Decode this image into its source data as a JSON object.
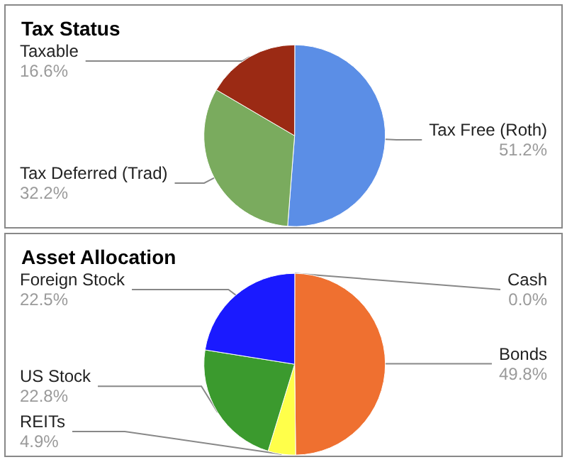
{
  "chart_data": [
    {
      "type": "pie",
      "title": "Tax Status",
      "categories": [
        "Tax Free (Roth)",
        "Tax Deferred (Trad)",
        "Taxable"
      ],
      "values": [
        51.2,
        32.2,
        16.6
      ],
      "value_labels": [
        "51.2%",
        "32.2%",
        "16.6%"
      ],
      "colors": [
        "#5b8ee6",
        "#7aab5e",
        "#9b2a14"
      ],
      "legend": false
    },
    {
      "type": "pie",
      "title": "Asset Allocation",
      "categories": [
        "Cash",
        "Bonds",
        "REITs",
        "US Stock",
        "Foreign Stock"
      ],
      "values": [
        0.0,
        49.8,
        4.9,
        22.8,
        22.5
      ],
      "value_labels": [
        "0.0%",
        "49.8%",
        "4.9%",
        "22.8%",
        "22.5%"
      ],
      "colors": [
        "#999999",
        "#ef7030",
        "#ffff4a",
        "#3b9a2e",
        "#1a1aff"
      ],
      "legend": false
    }
  ]
}
